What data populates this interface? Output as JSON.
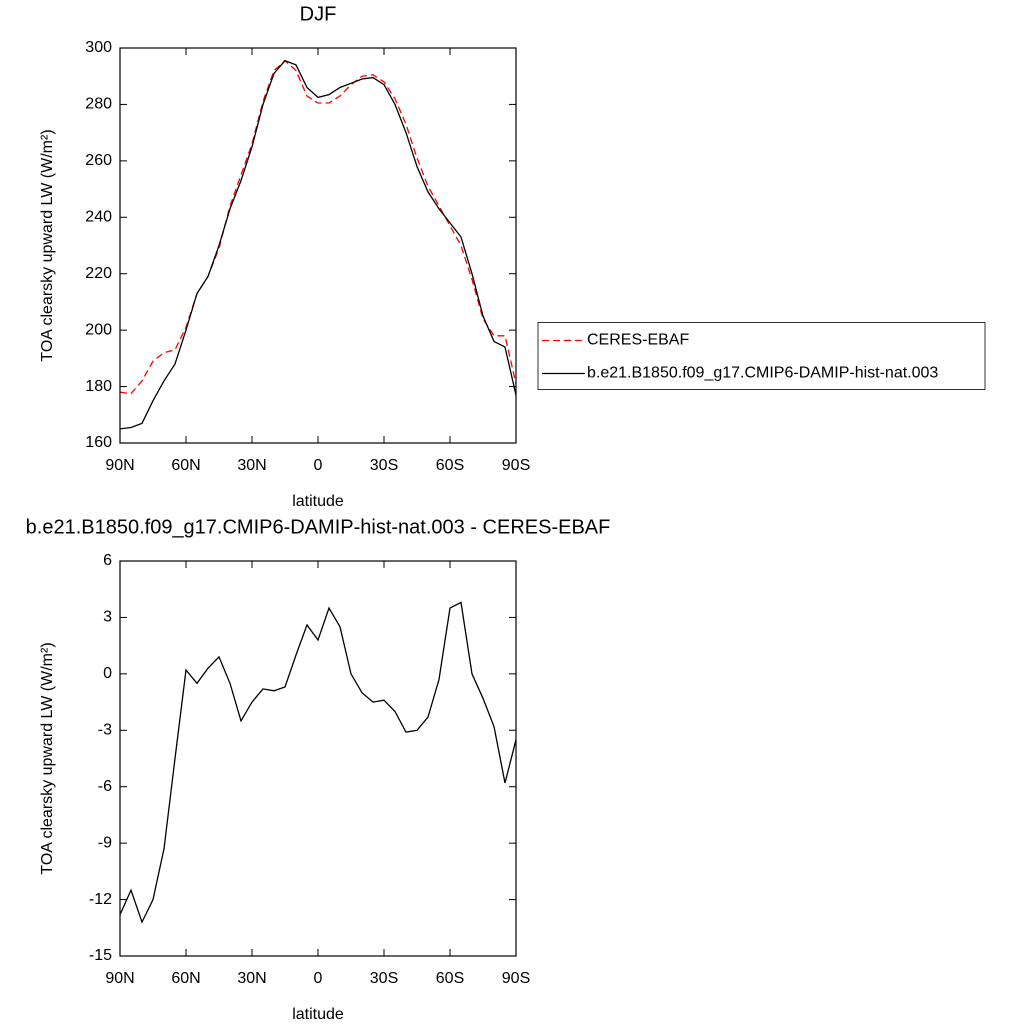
{
  "chart_data": [
    {
      "type": "line",
      "title": "DJF",
      "x_label": "latitude",
      "y_label": "TOA clearsky upward LW (W/m²)",
      "x": [
        90,
        85,
        80,
        75,
        70,
        65,
        60,
        55,
        50,
        45,
        40,
        35,
        30,
        25,
        20,
        15,
        10,
        5,
        0,
        -5,
        -10,
        -15,
        -20,
        -25,
        -30,
        -35,
        -40,
        -45,
        -50,
        -55,
        -60,
        -65,
        -70,
        -75,
        -80,
        -85,
        -90
      ],
      "series": [
        {
          "name": "CERES-EBAF",
          "color": "#ff0000",
          "linestyle": "dashed",
          "values": [
            178,
            177.5,
            182,
            189,
            192,
            193,
            201,
            213,
            219,
            229,
            244,
            255,
            266,
            281,
            292,
            295.5,
            292,
            283,
            280.5,
            280.5,
            283,
            287,
            290,
            290.5,
            288,
            282,
            273,
            261,
            251,
            244,
            237,
            230,
            218,
            204,
            198,
            198,
            181
          ]
        },
        {
          "name": "b.e21.B1850.f09_g17.CMIP6-DAMIP-hist-nat.003",
          "color": "#000000",
          "linestyle": "solid",
          "values": [
            165,
            165.5,
            167,
            175,
            182,
            188,
            200,
            213,
            219,
            230,
            243,
            253,
            265,
            280,
            291,
            295.5,
            294,
            286,
            282.5,
            283.5,
            286,
            287.5,
            289,
            289.5,
            287,
            280,
            270,
            258,
            249,
            243,
            238,
            233,
            220,
            205,
            196,
            194,
            177
          ]
        }
      ],
      "xlim": [
        90,
        -90
      ],
      "xticks": [
        {
          "value": 90,
          "label": "90N"
        },
        {
          "value": 60,
          "label": "60N"
        },
        {
          "value": 30,
          "label": "30N"
        },
        0,
        {
          "value": -30,
          "label": "30S"
        },
        {
          "value": -60,
          "label": "60S"
        },
        {
          "value": -90,
          "label": "90S"
        }
      ],
      "ylim": [
        160,
        300
      ],
      "yticks": [
        160,
        180,
        200,
        220,
        240,
        260,
        280,
        300
      ],
      "legend": "right"
    },
    {
      "type": "line",
      "title": "b.e21.B1850.f09_g17.CMIP6-DAMIP-hist-nat.003 - CERES-EBAF",
      "x_label": "latitude",
      "y_label": "TOA clearsky upward LW (W/m²)",
      "x": [
        90,
        85,
        80,
        75,
        70,
        65,
        60,
        55,
        50,
        45,
        40,
        35,
        30,
        25,
        20,
        15,
        10,
        5,
        0,
        -5,
        -10,
        -15,
        -20,
        -25,
        -30,
        -35,
        -40,
        -45,
        -50,
        -55,
        -60,
        -65,
        -70,
        -75,
        -80,
        -85,
        -90
      ],
      "series": [
        {
          "color": "#000000",
          "linestyle": "solid",
          "values": [
            -12.8,
            -11.5,
            -13.2,
            -12,
            -9.3,
            -4.5,
            0.2,
            -0.5,
            0.3,
            0.9,
            -0.5,
            -2.5,
            -1.5,
            -0.8,
            -0.9,
            -0.7,
            1,
            2.6,
            1.8,
            3.5,
            2.5,
            0,
            -1,
            -1.5,
            -1.4,
            -2,
            -3.1,
            -3,
            -2.3,
            -0.3,
            3.5,
            3.8,
            0,
            -1.3,
            -2.8,
            -5.8,
            -3.5
          ]
        }
      ],
      "xlim": [
        90,
        -90
      ],
      "xticks": [
        {
          "value": 90,
          "label": "90N"
        },
        {
          "value": 60,
          "label": "60N"
        },
        {
          "value": 30,
          "label": "30N"
        },
        0,
        {
          "value": -30,
          "label": "30S"
        },
        {
          "value": -60,
          "label": "60S"
        },
        {
          "value": -90,
          "label": "90S"
        }
      ],
      "ylim": [
        -15,
        6
      ],
      "yticks": [
        -15,
        -12,
        -9,
        -6,
        -3,
        0,
        3,
        6
      ]
    }
  ]
}
